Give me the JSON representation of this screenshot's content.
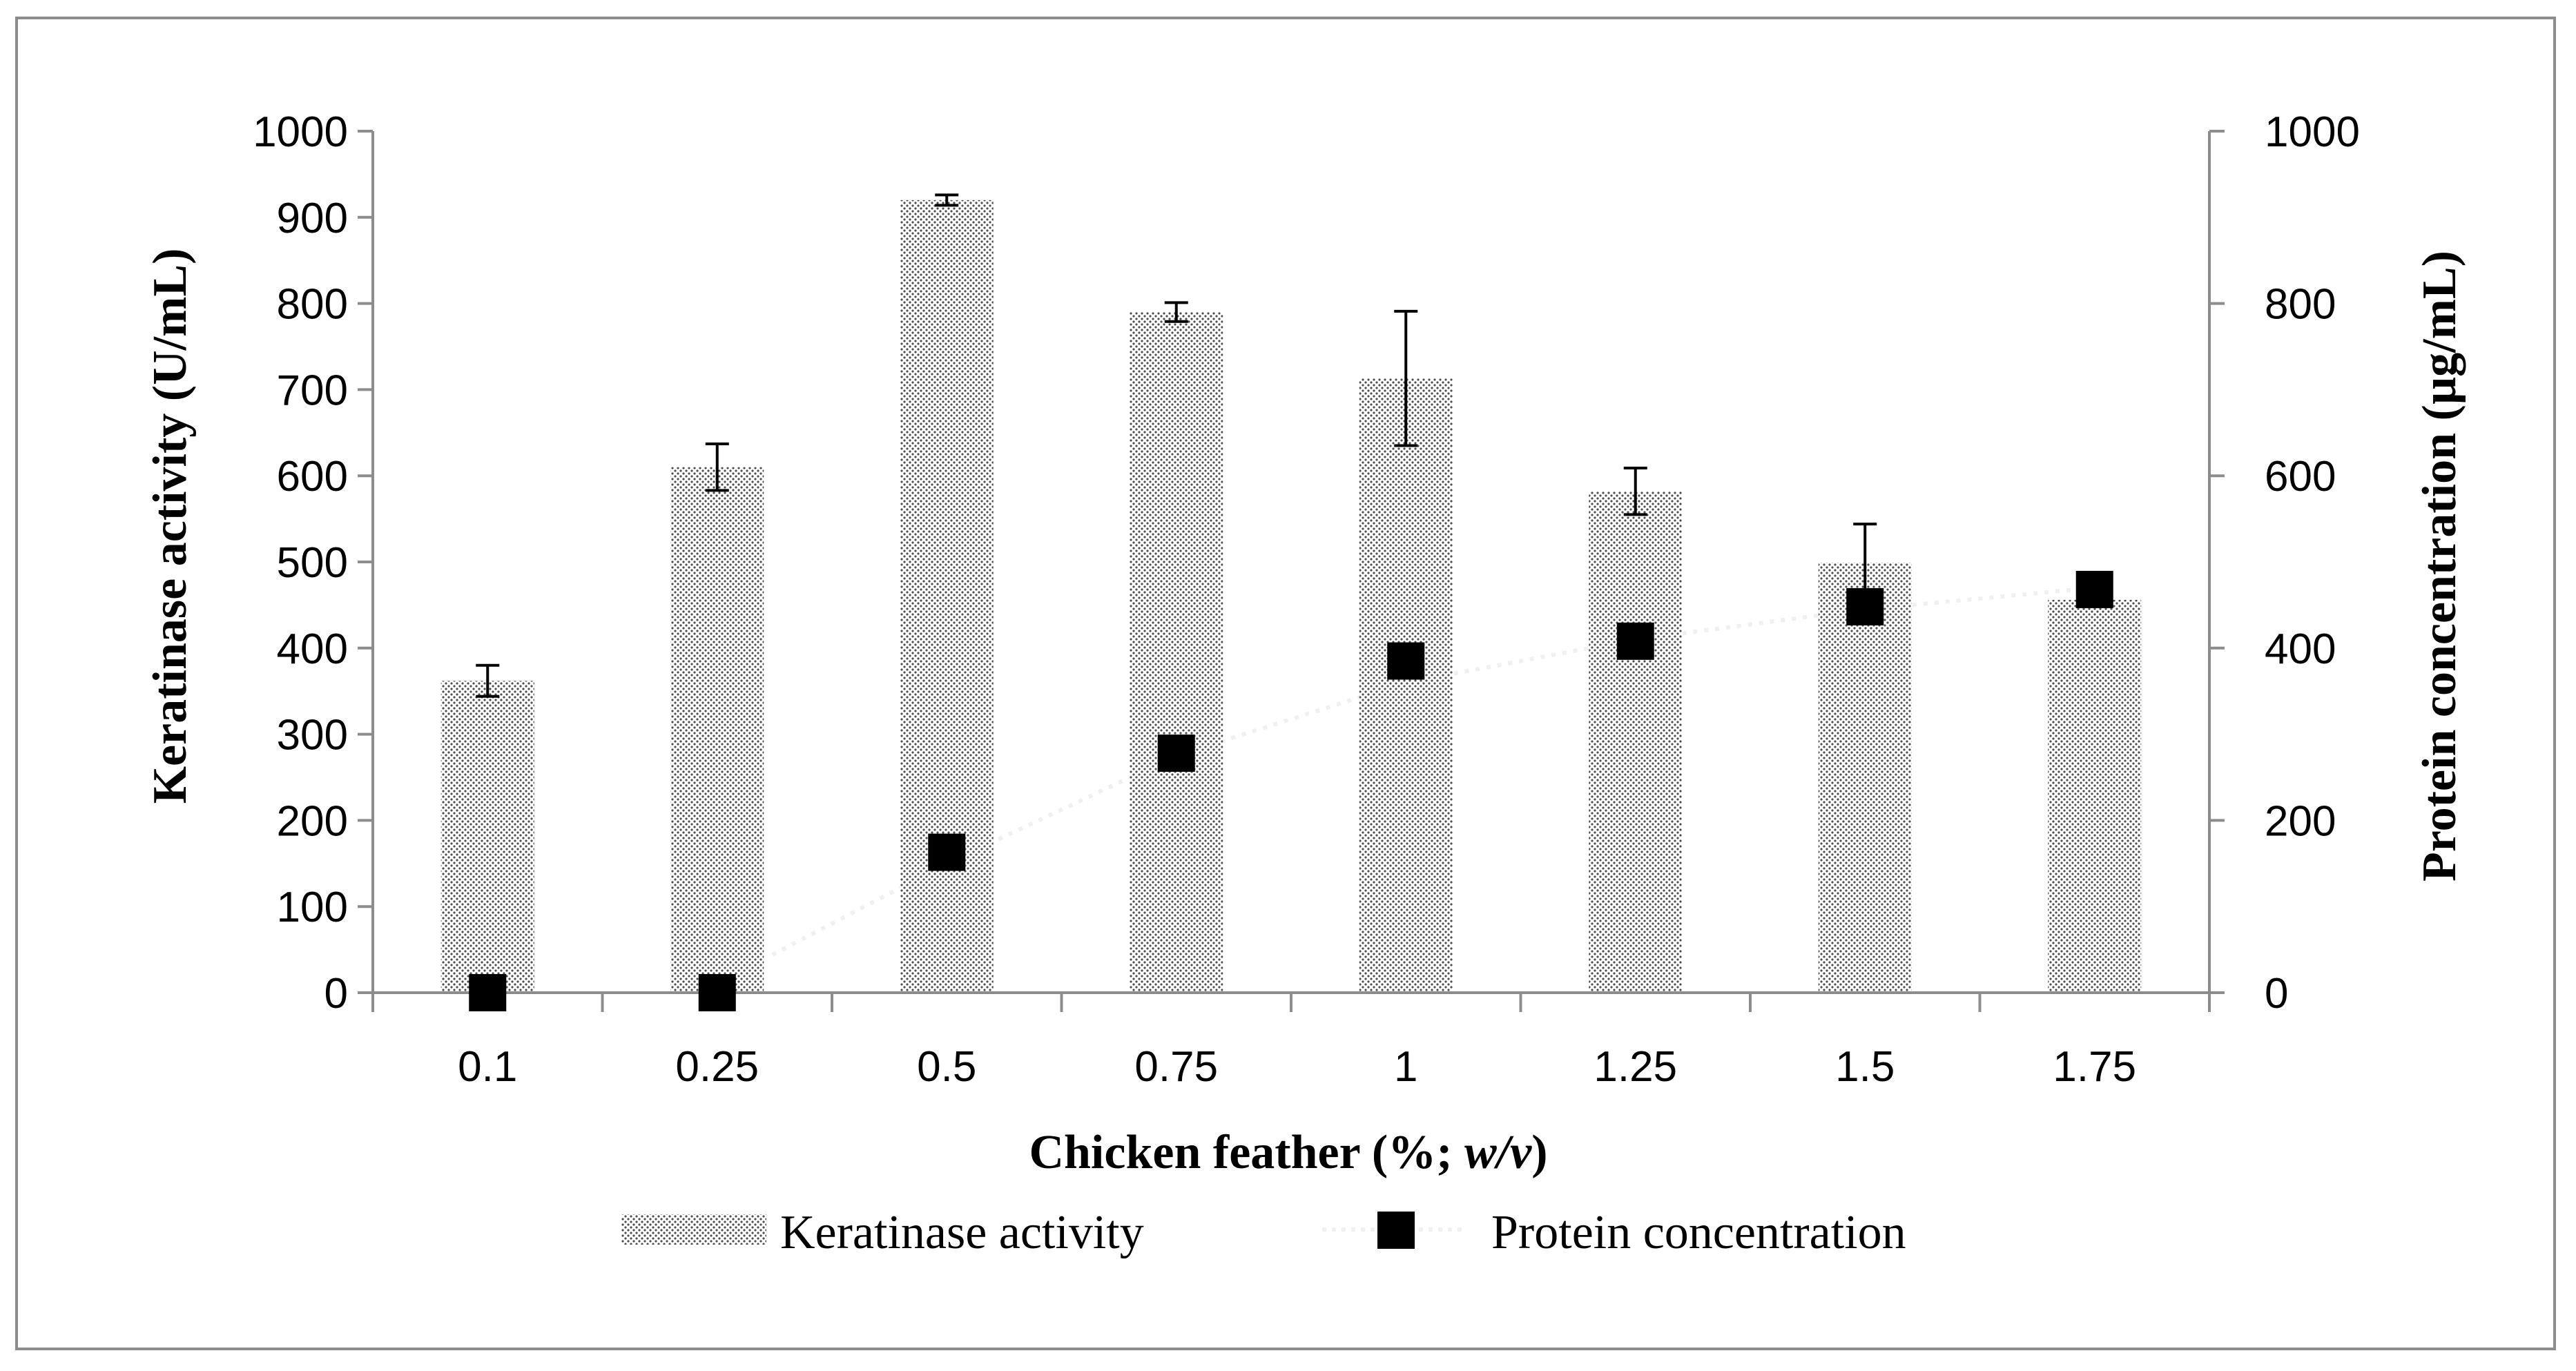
{
  "chart_data": {
    "type": "bar+scatter",
    "categories": [
      "0.1",
      "0.25",
      "0.5",
      "0.75",
      "1",
      "1.25",
      "1.5",
      "1.75"
    ],
    "xlabel_prefix": "Chicken feather (%; ",
    "xlabel_italic": "w/v",
    "xlabel_suffix": ")",
    "ylabel_left": "Keratinase activity (U/mL)",
    "ylabel_right": "Protein concentration (µg/mL)",
    "ylim_left": [
      0,
      1000
    ],
    "ylim_right": [
      0,
      1000
    ],
    "left_ticks": [
      "0",
      "100",
      "200",
      "300",
      "400",
      "500",
      "600",
      "700",
      "800",
      "900",
      "1000"
    ],
    "right_ticks": [
      "0",
      "200",
      "400",
      "600",
      "800",
      "1000"
    ],
    "series": [
      {
        "name": "Keratinase activity",
        "kind": "bar",
        "axis": "left",
        "values": [
          362,
          610,
          920,
          790,
          713,
          582,
          499,
          456
        ],
        "errors": [
          18,
          27,
          6,
          11,
          78,
          27,
          45,
          0
        ]
      },
      {
        "name": "Protein concentration",
        "kind": "scatter",
        "axis": "right",
        "values": [
          0,
          0,
          163,
          278,
          385,
          408,
          448,
          468
        ],
        "trendline": "dotted"
      }
    ],
    "legend": {
      "position": "bottom",
      "items": [
        "Keratinase activity",
        "Protein concentration"
      ]
    },
    "colors": {
      "axis": "#8c8c8c",
      "bar_dot": "#4d4d4d",
      "marker": "#000000",
      "trend": "#f0f0f0"
    }
  }
}
